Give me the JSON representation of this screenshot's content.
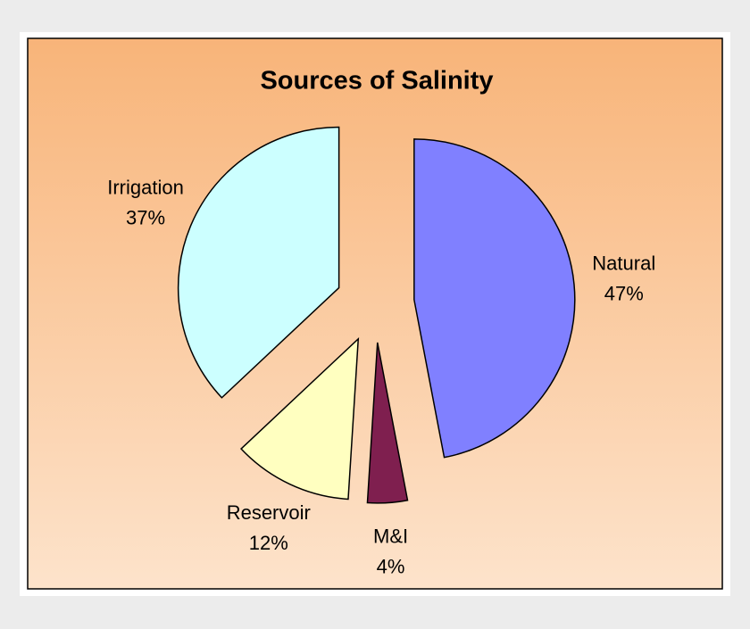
{
  "chart_data": {
    "type": "pie",
    "title": "Sources of Salinity",
    "categories": [
      "Natural",
      "M&I",
      "Reservoir",
      "Irrigation"
    ],
    "values": [
      47,
      4,
      12,
      37
    ],
    "value_labels": [
      "47%",
      "4%",
      "12%",
      "37%"
    ],
    "colors": [
      "#8080ff",
      "#7f1f4f",
      "#ffffc0",
      "#ccffff"
    ]
  }
}
